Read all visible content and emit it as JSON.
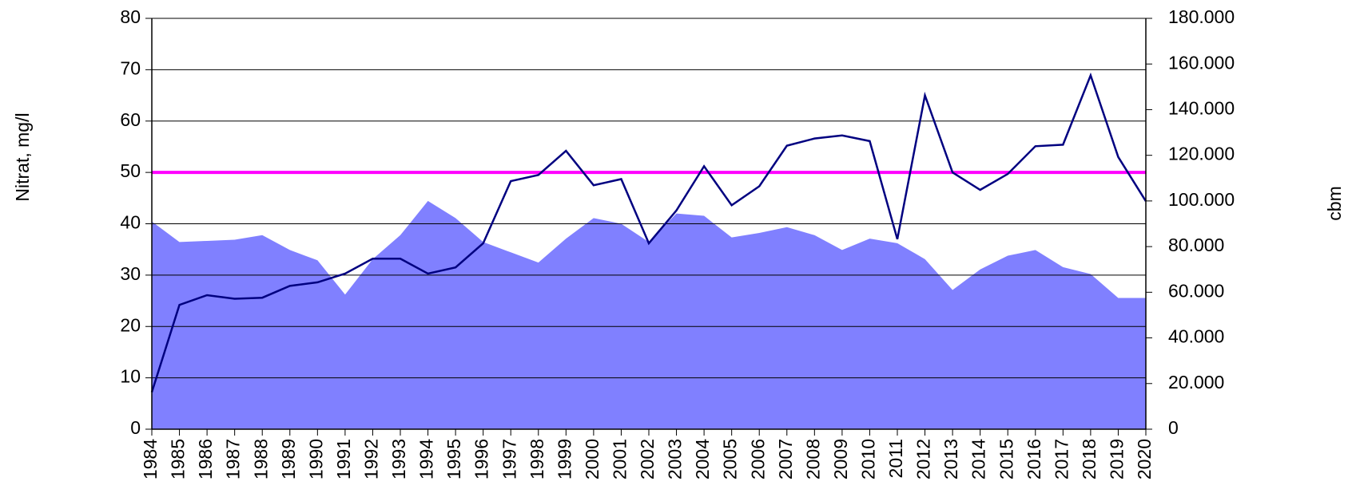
{
  "chart_data": {
    "type": "line-area",
    "y_label": "Nitrat, mg/l",
    "y2_label": "cbm",
    "categories": [
      "1984",
      "1985",
      "1986",
      "1987",
      "1988",
      "1989",
      "1990",
      "1991",
      "1992",
      "1993",
      "1994",
      "1995",
      "1996",
      "1997",
      "1998",
      "1999",
      "2000",
      "2001",
      "2002",
      "2003",
      "2004",
      "2005",
      "2006",
      "2007",
      "2008",
      "2009",
      "2010",
      "2011",
      "2012",
      "2013",
      "2014",
      "2015",
      "2016",
      "2017",
      "2018",
      "2019",
      "2020"
    ],
    "series": [
      {
        "kind": "area",
        "axis": "y2",
        "color": "#8080ff",
        "values": [
          91000,
          82000,
          82500,
          83000,
          85000,
          78500,
          74000,
          59000,
          74500,
          85000,
          100000,
          92500,
          82000,
          77500,
          73000,
          83500,
          92500,
          90000,
          82000,
          94500,
          93500,
          84000,
          86000,
          88500,
          85000,
          78500,
          83500,
          81500,
          74500,
          61000,
          70000,
          76000,
          78500,
          71000,
          68000,
          57500,
          57500
        ]
      },
      {
        "kind": "line",
        "axis": "y",
        "color": "#000080",
        "values": [
          7.2,
          24.2,
          26.1,
          25.4,
          25.6,
          27.9,
          28.6,
          30.3,
          33.2,
          33.2,
          30.3,
          31.5,
          36.2,
          48.3,
          49.5,
          54.2,
          47.5,
          48.7,
          36.2,
          42.6,
          51.2,
          43.6,
          47.3,
          55.2,
          56.6,
          57.2,
          56.1,
          37.0,
          65.0,
          50.0,
          46.6,
          49.7,
          55.1,
          55.4,
          68.9,
          53.0,
          44.4
        ]
      }
    ],
    "reference_lines": [
      {
        "value": 50,
        "color": "#ff00ff"
      }
    ],
    "ylim": [
      0,
      80
    ],
    "yticks": [
      0,
      10,
      20,
      30,
      40,
      50,
      60,
      70,
      80
    ],
    "y2lim": [
      0,
      180000
    ],
    "y2ticks": [
      0,
      {
        "value": 20000,
        "label": "20.000"
      },
      {
        "value": 40000,
        "label": "40.000"
      },
      {
        "value": 60000,
        "label": "60.000"
      },
      {
        "value": 80000,
        "label": "80.000"
      },
      {
        "value": 100000,
        "label": "100.000"
      },
      {
        "value": 120000,
        "label": "120.000"
      },
      {
        "value": 140000,
        "label": "140.000"
      },
      {
        "value": 160000,
        "label": "160.000"
      },
      {
        "value": 180000,
        "label": "180.000"
      }
    ],
    "grid": true
  }
}
